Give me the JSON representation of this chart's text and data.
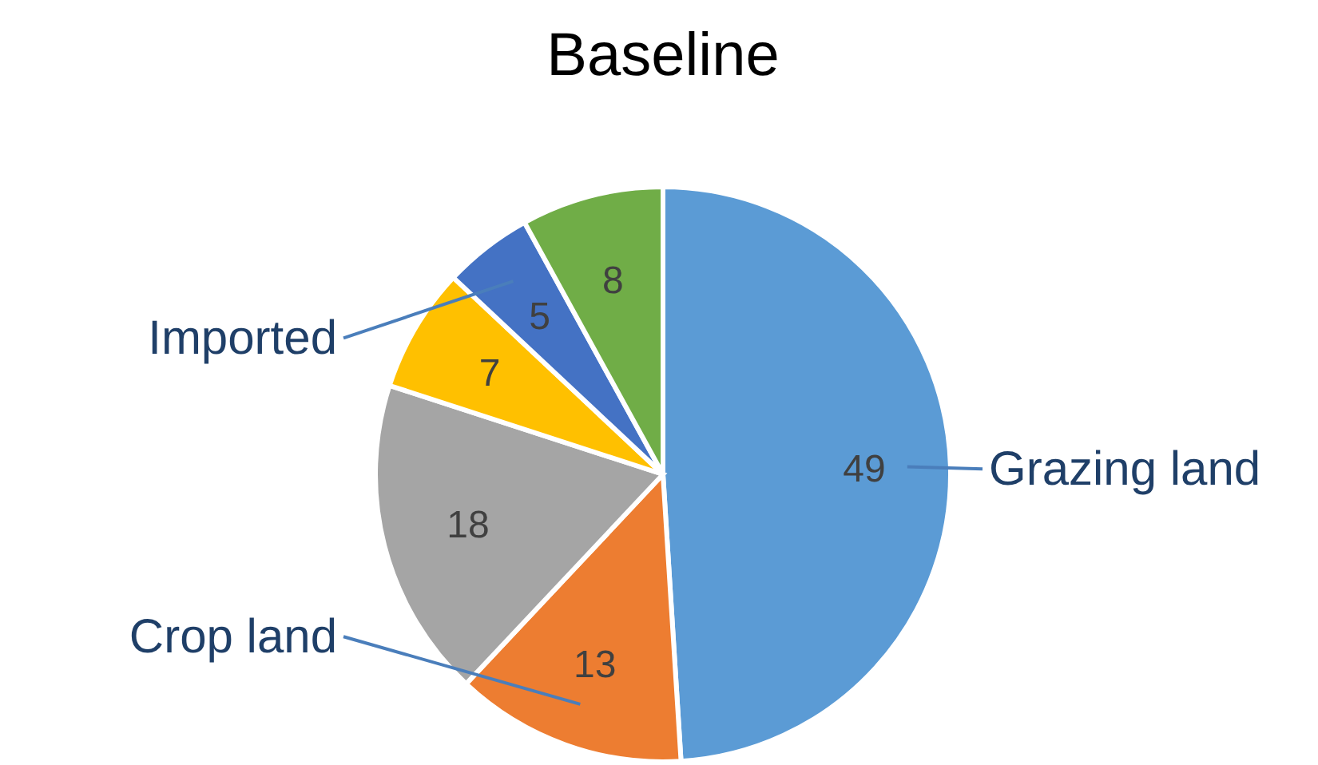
{
  "chart_data": {
    "type": "pie",
    "title": "Baseline",
    "categories": [
      "Grazing land",
      "Crop land",
      null,
      null,
      "Imported",
      null
    ],
    "values": [
      49,
      13,
      18,
      7,
      5,
      8
    ],
    "colors": [
      "#5b9bd5",
      "#ed7d31",
      "#a5a5a5",
      "#ffc000",
      "#4472c4",
      "#70ad47"
    ],
    "data_labels": true,
    "legend": false
  }
}
